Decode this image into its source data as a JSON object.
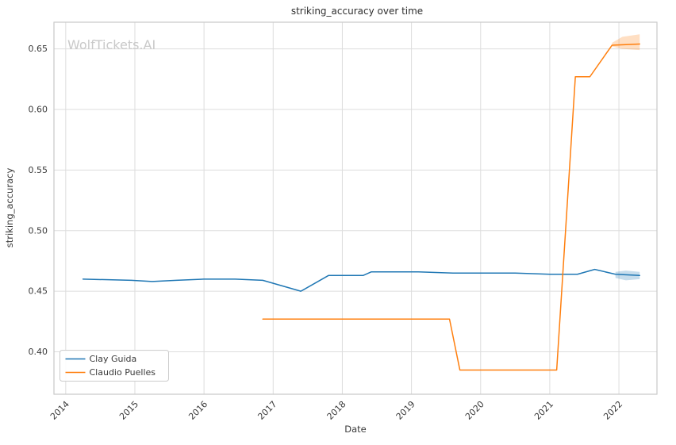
{
  "watermark": "WolfTickets.AI",
  "chart_data": {
    "type": "line",
    "title": "striking_accuracy over time",
    "xlabel": "Date",
    "ylabel": "striking_accuracy",
    "xlim": [
      2013.83,
      2022.55
    ],
    "ylim": [
      0.365,
      0.672
    ],
    "x_ticks": [
      2014,
      2015,
      2016,
      2017,
      2018,
      2019,
      2020,
      2021,
      2022
    ],
    "y_ticks": [
      0.4,
      0.45,
      0.5,
      0.55,
      0.6,
      0.65
    ],
    "grid": true,
    "legend_position": "lower left",
    "legend_labels": [
      "Clay Guida",
      "Claudio Puelles"
    ],
    "series": [
      {
        "name": "Clay Guida",
        "color": "#1f77b4",
        "points": [
          [
            2014.25,
            0.46
          ],
          [
            2014.95,
            0.459
          ],
          [
            2015.25,
            0.458
          ],
          [
            2015.6,
            0.459
          ],
          [
            2016.0,
            0.46
          ],
          [
            2016.45,
            0.46
          ],
          [
            2016.85,
            0.459
          ],
          [
            2017.4,
            0.45
          ],
          [
            2017.8,
            0.463
          ],
          [
            2018.3,
            0.463
          ],
          [
            2018.42,
            0.466
          ],
          [
            2019.1,
            0.466
          ],
          [
            2019.6,
            0.465
          ],
          [
            2020.5,
            0.465
          ],
          [
            2021.0,
            0.464
          ],
          [
            2021.4,
            0.464
          ],
          [
            2021.65,
            0.468
          ],
          [
            2021.95,
            0.464
          ],
          [
            2022.3,
            0.463
          ]
        ],
        "band": [
          [
            2021.95,
            0.461,
            0.466
          ],
          [
            2022.1,
            0.459,
            0.467
          ],
          [
            2022.3,
            0.46,
            0.466
          ]
        ]
      },
      {
        "name": "Claudio Puelles",
        "color": "#ff7f0e",
        "points": [
          [
            2016.85,
            0.427
          ],
          [
            2019.55,
            0.427
          ],
          [
            2019.7,
            0.385
          ],
          [
            2021.1,
            0.385
          ],
          [
            2021.37,
            0.627
          ],
          [
            2021.58,
            0.627
          ],
          [
            2021.9,
            0.653
          ],
          [
            2022.3,
            0.654
          ]
        ],
        "band": [
          [
            2021.9,
            0.652,
            0.655
          ],
          [
            2022.05,
            0.65,
            0.66
          ],
          [
            2022.3,
            0.649,
            0.662
          ]
        ]
      }
    ]
  }
}
